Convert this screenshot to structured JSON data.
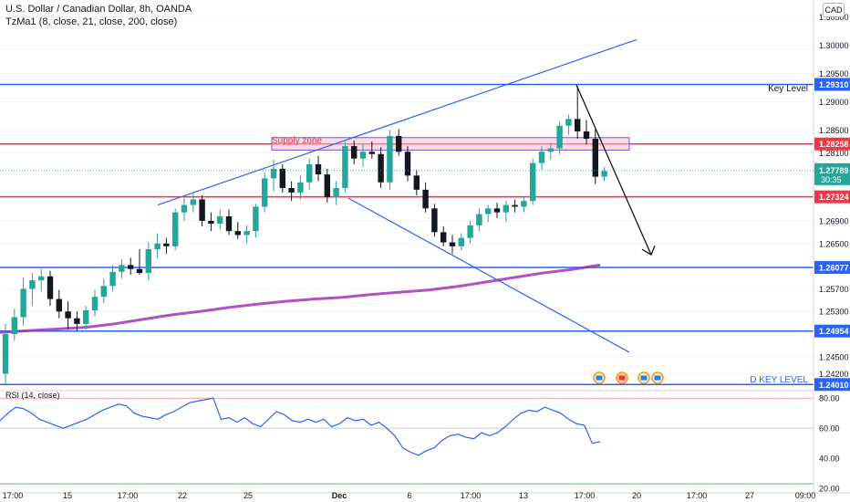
{
  "header": {
    "title": "U.S. Dollar / Canadian Dollar, 8h, OANDA",
    "indicator": "TzMa1 (8, close, 21, close, 200, close)",
    "currency_badge": "CAD"
  },
  "rsi_panel": {
    "label": "RSI (14, close)",
    "ticks": [
      "80.00",
      "60.00",
      "40.00",
      "20.00"
    ]
  },
  "price_axis": {
    "ticks": [
      "1.30500",
      "1.30000",
      "1.29500",
      "1.29000",
      "1.28500",
      "1.28100",
      "1.26900",
      "1.26500",
      "1.25700",
      "1.25300",
      "1.24500",
      "1.24200"
    ]
  },
  "time_axis": {
    "labels": [
      "17:00",
      "15",
      "17:00",
      "22",
      "25",
      "Dec",
      "6",
      "17:00",
      "13",
      "17:00",
      "20",
      "17:00",
      "27",
      "09:00"
    ]
  },
  "annotations": {
    "supply_zone": "Supply zone",
    "key_level": "Key Level",
    "d_key_level": "D KEY LEVEL"
  },
  "levels": [
    {
      "label": "1.29310",
      "value": 1.2931,
      "color": "#2962ff"
    },
    {
      "label": "1.28258",
      "value": 1.28258,
      "color": "#f23645"
    },
    {
      "label": "1.27324",
      "value": 1.27324,
      "color": "#f23645"
    },
    {
      "label": "1.26077",
      "value": 1.26077,
      "color": "#2962ff"
    },
    {
      "label": "1.24954",
      "value": 1.24954,
      "color": "#2962ff"
    },
    {
      "label": "1.24010",
      "value": 1.2401,
      "color": "#2962ff"
    }
  ],
  "last_price": {
    "label": "1.27789",
    "countdown": "30:35",
    "value": 1.27789
  },
  "colors": {
    "up": "#26a69a",
    "down": "#131722",
    "ma": "#9c27b0",
    "trend": "#2962ff",
    "rsi": "#2962ff",
    "supply_fill": "#f8bbd0"
  },
  "chart_data": {
    "type": "candlestick",
    "title": "U.S. Dollar / Canadian Dollar, 8h, OANDA",
    "ylim": [
      1.2395,
      1.308
    ],
    "candles": [
      {
        "o": 1.242,
        "h": 1.2508,
        "l": 1.24,
        "c": 1.249
      },
      {
        "o": 1.249,
        "h": 1.2535,
        "l": 1.2478,
        "c": 1.252
      },
      {
        "o": 1.252,
        "h": 1.259,
        "l": 1.2505,
        "c": 1.257
      },
      {
        "o": 1.257,
        "h": 1.2598,
        "l": 1.254,
        "c": 1.2585
      },
      {
        "o": 1.2585,
        "h": 1.2605,
        "l": 1.2565,
        "c": 1.2592
      },
      {
        "o": 1.2592,
        "h": 1.2602,
        "l": 1.254,
        "c": 1.2552
      },
      {
        "o": 1.2552,
        "h": 1.2568,
        "l": 1.2518,
        "c": 1.253
      },
      {
        "o": 1.253,
        "h": 1.2548,
        "l": 1.2498,
        "c": 1.2518
      },
      {
        "o": 1.2518,
        "h": 1.253,
        "l": 1.2495,
        "c": 1.2508
      },
      {
        "o": 1.2508,
        "h": 1.254,
        "l": 1.2498,
        "c": 1.2532
      },
      {
        "o": 1.2532,
        "h": 1.2568,
        "l": 1.2522,
        "c": 1.2556
      },
      {
        "o": 1.2556,
        "h": 1.2588,
        "l": 1.2545,
        "c": 1.2575
      },
      {
        "o": 1.2575,
        "h": 1.2612,
        "l": 1.2565,
        "c": 1.26
      },
      {
        "o": 1.26,
        "h": 1.2622,
        "l": 1.2588,
        "c": 1.2612
      },
      {
        "o": 1.2612,
        "h": 1.2625,
        "l": 1.2595,
        "c": 1.2605
      },
      {
        "o": 1.2605,
        "h": 1.264,
        "l": 1.2595,
        "c": 1.2598
      },
      {
        "o": 1.2598,
        "h": 1.2652,
        "l": 1.2585,
        "c": 1.264
      },
      {
        "o": 1.264,
        "h": 1.2668,
        "l": 1.2625,
        "c": 1.265
      },
      {
        "o": 1.265,
        "h": 1.266,
        "l": 1.2632,
        "c": 1.2645
      },
      {
        "o": 1.2645,
        "h": 1.2712,
        "l": 1.2638,
        "c": 1.2705
      },
      {
        "o": 1.2705,
        "h": 1.273,
        "l": 1.269,
        "c": 1.2718
      },
      {
        "o": 1.2718,
        "h": 1.2738,
        "l": 1.2705,
        "c": 1.2728
      },
      {
        "o": 1.2728,
        "h": 1.2735,
        "l": 1.268,
        "c": 1.269
      },
      {
        "o": 1.269,
        "h": 1.2705,
        "l": 1.2672,
        "c": 1.2685
      },
      {
        "o": 1.2685,
        "h": 1.271,
        "l": 1.2675,
        "c": 1.2698
      },
      {
        "o": 1.2698,
        "h": 1.271,
        "l": 1.2665,
        "c": 1.2672
      },
      {
        "o": 1.2672,
        "h": 1.2688,
        "l": 1.2658,
        "c": 1.2665
      },
      {
        "o": 1.2665,
        "h": 1.2682,
        "l": 1.265,
        "c": 1.2672
      },
      {
        "o": 1.2672,
        "h": 1.272,
        "l": 1.266,
        "c": 1.2715
      },
      {
        "o": 1.2715,
        "h": 1.2775,
        "l": 1.2705,
        "c": 1.2765
      },
      {
        "o": 1.2765,
        "h": 1.2798,
        "l": 1.2742,
        "c": 1.2782
      },
      {
        "o": 1.2782,
        "h": 1.279,
        "l": 1.274,
        "c": 1.2748
      },
      {
        "o": 1.2748,
        "h": 1.276,
        "l": 1.2725,
        "c": 1.274
      },
      {
        "o": 1.274,
        "h": 1.277,
        "l": 1.2728,
        "c": 1.2758
      },
      {
        "o": 1.2758,
        "h": 1.28,
        "l": 1.2745,
        "c": 1.279
      },
      {
        "o": 1.279,
        "h": 1.2805,
        "l": 1.276,
        "c": 1.2772
      },
      {
        "o": 1.2772,
        "h": 1.2782,
        "l": 1.2722,
        "c": 1.2732
      },
      {
        "o": 1.2732,
        "h": 1.276,
        "l": 1.2718,
        "c": 1.2748
      },
      {
        "o": 1.2748,
        "h": 1.283,
        "l": 1.274,
        "c": 1.2822
      },
      {
        "o": 1.2822,
        "h": 1.2832,
        "l": 1.279,
        "c": 1.28
      },
      {
        "o": 1.28,
        "h": 1.2825,
        "l": 1.2785,
        "c": 1.2812
      },
      {
        "o": 1.2812,
        "h": 1.283,
        "l": 1.28,
        "c": 1.2808
      },
      {
        "o": 1.2808,
        "h": 1.282,
        "l": 1.2748,
        "c": 1.2758
      },
      {
        "o": 1.2758,
        "h": 1.285,
        "l": 1.2745,
        "c": 1.284
      },
      {
        "o": 1.284,
        "h": 1.2852,
        "l": 1.2805,
        "c": 1.2812
      },
      {
        "o": 1.2812,
        "h": 1.2822,
        "l": 1.276,
        "c": 1.277
      },
      {
        "o": 1.277,
        "h": 1.278,
        "l": 1.2735,
        "c": 1.2745
      },
      {
        "o": 1.2745,
        "h": 1.2758,
        "l": 1.2705,
        "c": 1.2712
      },
      {
        "o": 1.2712,
        "h": 1.272,
        "l": 1.2662,
        "c": 1.267
      },
      {
        "o": 1.267,
        "h": 1.268,
        "l": 1.2645,
        "c": 1.2652
      },
      {
        "o": 1.2652,
        "h": 1.2665,
        "l": 1.2632,
        "c": 1.2645
      },
      {
        "o": 1.2645,
        "h": 1.2668,
        "l": 1.2638,
        "c": 1.266
      },
      {
        "o": 1.266,
        "h": 1.269,
        "l": 1.265,
        "c": 1.2682
      },
      {
        "o": 1.2682,
        "h": 1.2712,
        "l": 1.2672,
        "c": 1.2702
      },
      {
        "o": 1.2702,
        "h": 1.2718,
        "l": 1.2688,
        "c": 1.2712
      },
      {
        "o": 1.2712,
        "h": 1.2722,
        "l": 1.2695,
        "c": 1.2705
      },
      {
        "o": 1.2705,
        "h": 1.2725,
        "l": 1.2688,
        "c": 1.2718
      },
      {
        "o": 1.2718,
        "h": 1.2728,
        "l": 1.2705,
        "c": 1.2715
      },
      {
        "o": 1.2715,
        "h": 1.2732,
        "l": 1.2705,
        "c": 1.2725
      },
      {
        "o": 1.2725,
        "h": 1.28,
        "l": 1.2718,
        "c": 1.2792
      },
      {
        "o": 1.2792,
        "h": 1.2822,
        "l": 1.278,
        "c": 1.2812
      },
      {
        "o": 1.2812,
        "h": 1.2828,
        "l": 1.2798,
        "c": 1.2818
      },
      {
        "o": 1.2818,
        "h": 1.2865,
        "l": 1.2808,
        "c": 1.2858
      },
      {
        "o": 1.2858,
        "h": 1.2878,
        "l": 1.2842,
        "c": 1.287
      },
      {
        "o": 1.287,
        "h": 1.2928,
        "l": 1.2835,
        "c": 1.2848
      },
      {
        "o": 1.2848,
        "h": 1.2868,
        "l": 1.2825,
        "c": 1.2835
      },
      {
        "o": 1.2835,
        "h": 1.2852,
        "l": 1.2755,
        "c": 1.2768
      },
      {
        "o": 1.2768,
        "h": 1.2785,
        "l": 1.276,
        "c": 1.2778
      }
    ],
    "ma200": [
      1.2493,
      1.2496,
      1.2499,
      1.2502,
      1.2508,
      1.2516,
      1.2524,
      1.253,
      1.2537,
      1.2543,
      1.2548,
      1.2552,
      1.2555,
      1.256,
      1.2564,
      1.2568,
      1.2574,
      1.2582,
      1.259,
      1.2598,
      1.2604,
      1.2612
    ],
    "rsi": [
      65,
      70,
      74,
      73,
      70,
      66,
      64,
      62,
      60,
      62,
      64,
      66,
      69,
      72,
      74,
      76,
      75,
      70,
      68,
      67,
      66,
      69,
      71,
      74,
      77,
      78,
      79,
      80,
      66,
      67,
      64,
      67,
      63,
      61,
      66,
      71,
      69,
      65,
      64,
      66,
      64,
      66,
      61,
      63,
      67,
      65,
      66,
      62,
      64,
      60,
      55,
      47,
      44,
      42,
      45,
      47,
      52,
      55,
      56,
      54,
      53,
      57,
      55,
      57,
      61,
      66,
      70,
      72,
      71,
      74,
      72,
      70,
      66,
      63,
      62,
      50,
      51
    ],
    "rsi_ylim": [
      20,
      85
    ]
  }
}
